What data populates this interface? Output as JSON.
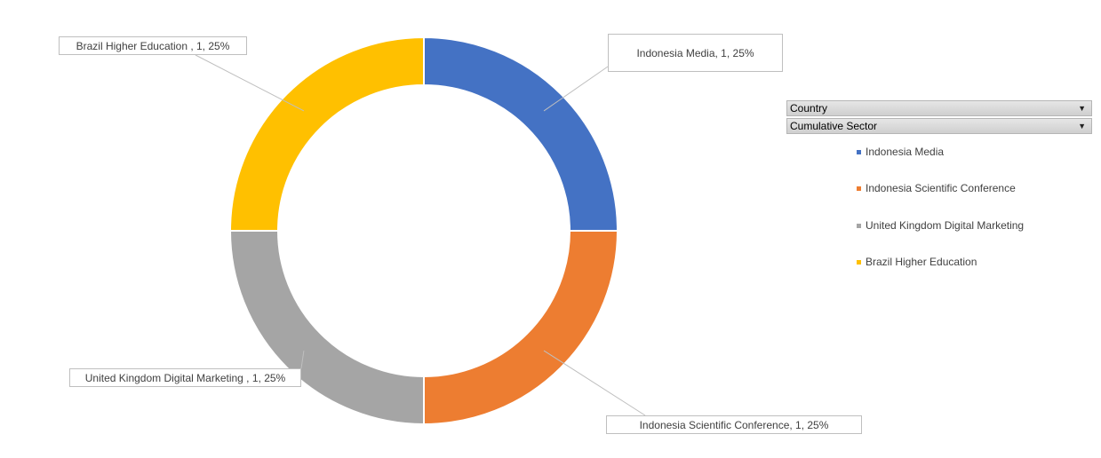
{
  "chart_data": {
    "type": "pie",
    "style": "doughnut",
    "categories": [
      "Indonesia Media",
      "Indonesia Scientific Conference",
      "United Kingdom Digital Marketing",
      "Brazil Higher Education"
    ],
    "values": [
      1,
      1,
      1,
      1
    ],
    "percents": [
      "25%",
      "25%",
      "25%",
      "25%"
    ],
    "colors": [
      "#4472c4",
      "#ed7d31",
      "#a5a5a5",
      "#ffc000"
    ],
    "data_labels": [
      "Indonesia Media, 1, 25%",
      "Indonesia Scientific Conference, 1, 25%",
      "United Kingdom Digital Marketing , 1, 25%",
      "Brazil Higher Education , 1, 25%"
    ],
    "legend": {
      "position": "right",
      "entries": [
        "Indonesia Media",
        "Indonesia Scientific Conference",
        "United Kingdom Digital Marketing",
        "Brazil Higher Education"
      ]
    }
  },
  "field_buttons": {
    "country": "Country",
    "cumulative_sector": "Cumulative Sector"
  }
}
